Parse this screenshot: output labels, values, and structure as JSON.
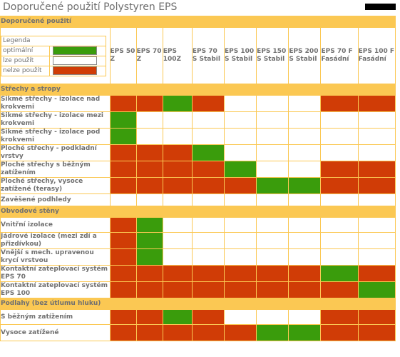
{
  "title": "Doporučené použití Polystyren EPS",
  "banner": "Doporučené použití",
  "colors": {
    "red": "#d03c06",
    "green": "#3a9c0c",
    "white": "#ffffff",
    "accent": "#fbc853"
  },
  "legend": {
    "title": "Legenda",
    "items": [
      {
        "label": "optimální",
        "color": "green"
      },
      {
        "label": "lze použít",
        "color": "white"
      },
      {
        "label": "nelze použít",
        "color": "red"
      }
    ]
  },
  "columns": [
    "EPS 50 Z",
    "EPS 70 Z",
    "EPS 100Z",
    "EPS 70 S Stabil",
    "EPS 100 S Stabil",
    "EPS 150 S Stabil",
    "EPS 200 S Stabil",
    "EPS 70 F Fasádní",
    "EPS 100 F Fasádní"
  ],
  "sections": [
    {
      "title": "Střechy a stropy",
      "rows": [
        {
          "label": "Šikmé střechy - izolace nad krokvemi",
          "cells": [
            "r",
            "r",
            "g",
            "r",
            "w",
            "w",
            "w",
            "r",
            "r"
          ]
        },
        {
          "label": "Šikmé střechy - izolace mezi krokvemi",
          "cells": [
            "g",
            "w",
            "w",
            "w",
            "w",
            "w",
            "w",
            "w",
            "w"
          ]
        },
        {
          "label": "Šikmé střechy - izolace pod krokvemi",
          "cells": [
            "g",
            "w",
            "w",
            "w",
            "w",
            "w",
            "w",
            "w",
            "w"
          ]
        },
        {
          "label": "Ploché střechy - podkladní vrstvy",
          "cells": [
            "r",
            "r",
            "r",
            "g",
            "w",
            "w",
            "w",
            "w",
            "w"
          ]
        },
        {
          "label": "Ploché střechy s běžným zatížením",
          "cells": [
            "r",
            "r",
            "r",
            "r",
            "g",
            "w",
            "w",
            "r",
            "r"
          ]
        },
        {
          "label": "Ploché střechy, vysoce zatížené (terasy)",
          "cells": [
            "r",
            "r",
            "r",
            "r",
            "r",
            "g",
            "g",
            "r",
            "r"
          ]
        },
        {
          "label": "Zavěšené podhledy",
          "cells": [
            "w",
            "w",
            "w",
            "w",
            "w",
            "w",
            "w",
            "w",
            "w"
          ]
        }
      ]
    },
    {
      "title": "Obvodové stěny",
      "rows": [
        {
          "label": "Vnitřní izolace",
          "cells": [
            "r",
            "g",
            "w",
            "w",
            "w",
            "w",
            "w",
            "w",
            "w"
          ]
        },
        {
          "label": "Jádrové izolace (mezi zdí a přizdívkou)",
          "cells": [
            "r",
            "g",
            "w",
            "w",
            "w",
            "w",
            "w",
            "w",
            "w"
          ]
        },
        {
          "label": "Vnější s mech. upravenou krycí vrstvou",
          "cells": [
            "r",
            "g",
            "w",
            "w",
            "w",
            "w",
            "w",
            "w",
            "w"
          ]
        },
        {
          "label": "Kontaktní zateplovací systém EPS 70",
          "cells": [
            "r",
            "r",
            "r",
            "r",
            "r",
            "r",
            "r",
            "g",
            "r"
          ]
        },
        {
          "label": "Kontaktní zateplovací systém EPS 100",
          "cells": [
            "r",
            "r",
            "r",
            "r",
            "r",
            "r",
            "r",
            "r",
            "g"
          ]
        }
      ]
    },
    {
      "title": "Podlahy (bez útlumu hluku)",
      "rows": [
        {
          "label": "S běžným zatížením",
          "cells": [
            "r",
            "r",
            "g",
            "r",
            "w",
            "w",
            "w",
            "r",
            "r"
          ]
        },
        {
          "label": "Vysoce zatížené",
          "cells": [
            "r",
            "r",
            "r",
            "r",
            "r",
            "g",
            "g",
            "r",
            "r"
          ]
        }
      ]
    }
  ]
}
